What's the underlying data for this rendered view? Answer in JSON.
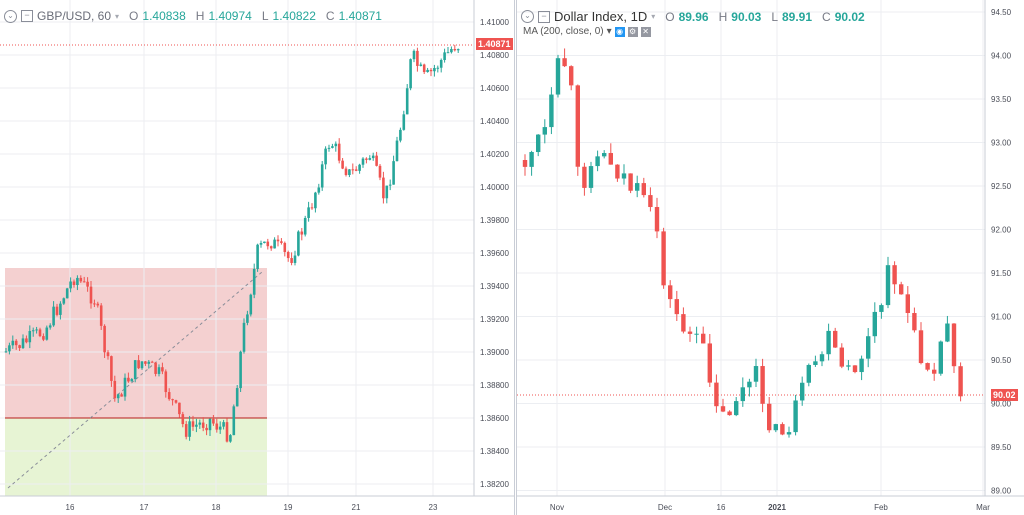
{
  "left": {
    "symbol": "GBP/USD, 60",
    "dropdown": "▾",
    "ohlc": [
      {
        "label": "O",
        "value": "1.40838"
      },
      {
        "label": "H",
        "value": "1.40974"
      },
      {
        "label": "L",
        "value": "1.40822"
      },
      {
        "label": "C",
        "value": "1.40871"
      }
    ],
    "price_axis": [
      "1.41000",
      "1.40800",
      "1.40600",
      "1.40400",
      "1.40200",
      "1.40000",
      "1.39800",
      "1.39600",
      "1.39400",
      "1.39200",
      "1.39000",
      "1.38800",
      "1.38600",
      "1.38400",
      "1.38200"
    ],
    "time_axis": [
      "16",
      "17",
      "18",
      "19",
      "21",
      "23"
    ],
    "last_price": "1.40871",
    "colors": {
      "up": "#26a69a",
      "down": "#ef5350",
      "zone_top": "#f4d0d0",
      "zone_bottom": "#e7f4d4",
      "midline": "#b71c1c",
      "last": "#ef5350"
    }
  },
  "right": {
    "symbol": "Dollar Index, 1D",
    "dropdown": "▾",
    "ohlc": [
      {
        "label": "O",
        "value": "89.96"
      },
      {
        "label": "H",
        "value": "90.03"
      },
      {
        "label": "L",
        "value": "89.91"
      },
      {
        "label": "C",
        "value": "90.02"
      }
    ],
    "indicator": "MA (200, close, 0)",
    "price_axis": [
      "94.50",
      "94.00",
      "93.50",
      "93.00",
      "92.50",
      "92.00",
      "91.50",
      "91.00",
      "90.50",
      "90.00",
      "89.50",
      "89.00"
    ],
    "time_axis": [
      "Nov",
      "Dec",
      "16",
      "2021",
      "Feb",
      "Mar"
    ],
    "last_price": "90.02",
    "colors": {
      "up": "#26a69a",
      "down": "#ef5350",
      "last": "#ef5350",
      "accent": "#2196f3"
    }
  }
}
